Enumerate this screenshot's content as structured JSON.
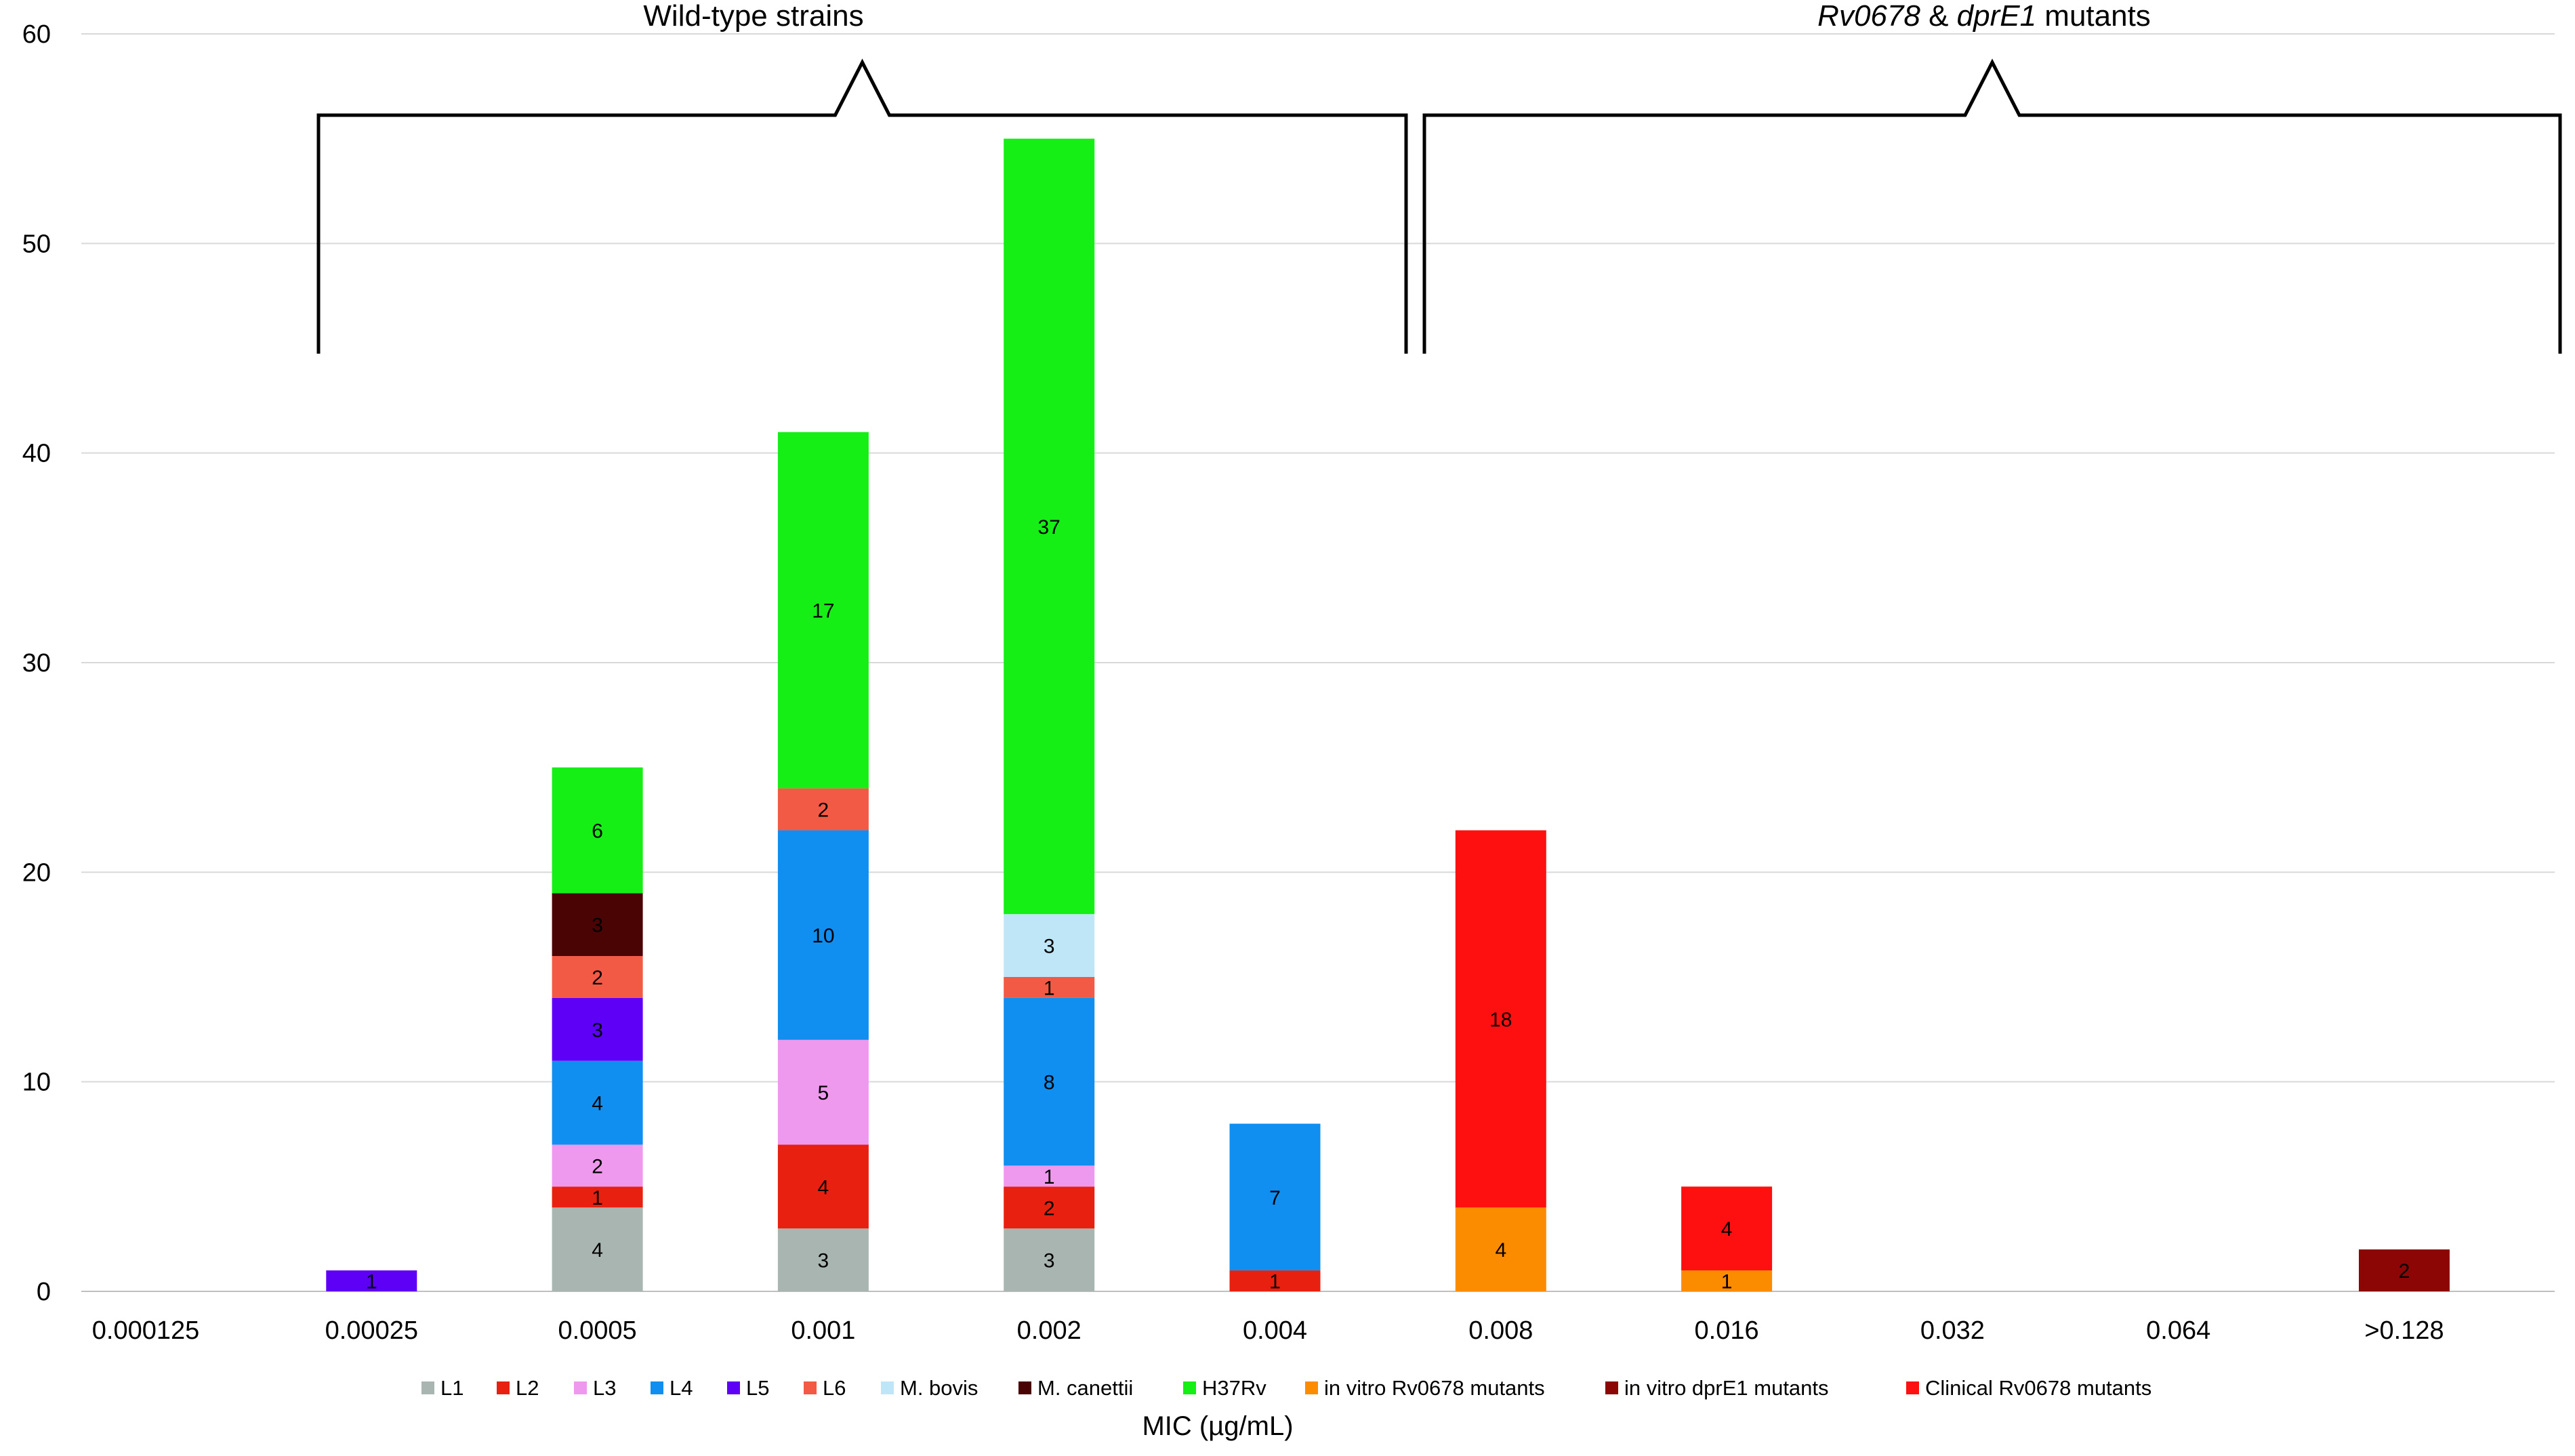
{
  "chart_data": {
    "type": "bar",
    "stacked": true,
    "title": "",
    "xlabel": "MIC (µg/mL)",
    "ylabel": "",
    "ylim": [
      0,
      60
    ],
    "yticks": [
      0,
      10,
      20,
      30,
      40,
      50,
      60
    ],
    "categories": [
      "0.000125",
      "0.00025",
      "0.0005",
      "0.001",
      "0.002",
      "0.004",
      "0.008",
      "0.016",
      "0.032",
      "0.064",
      ">0.128"
    ],
    "series": [
      {
        "name": "L1",
        "color": "#a9b5b1",
        "values": [
          0,
          0,
          4,
          3,
          3,
          0,
          0,
          0,
          0,
          0,
          0
        ]
      },
      {
        "name": "L2",
        "color": "#e8200f",
        "values": [
          0,
          0,
          1,
          4,
          2,
          1,
          0,
          0,
          0,
          0,
          0
        ]
      },
      {
        "name": "L3",
        "color": "#ee99ee",
        "values": [
          0,
          0,
          2,
          5,
          1,
          0,
          0,
          0,
          0,
          0,
          0
        ]
      },
      {
        "name": "L4",
        "color": "#108ff0",
        "values": [
          0,
          0,
          4,
          10,
          8,
          7,
          0,
          0,
          0,
          0,
          0
        ]
      },
      {
        "name": "L5",
        "color": "#5d00f5",
        "values": [
          0,
          1,
          3,
          0,
          0,
          0,
          0,
          0,
          0,
          0,
          0
        ]
      },
      {
        "name": "L6",
        "color": "#f25a45",
        "values": [
          0,
          0,
          2,
          2,
          1,
          0,
          0,
          0,
          0,
          0,
          0
        ]
      },
      {
        "name": "M. bovis",
        "color": "#bfe6f7",
        "values": [
          0,
          0,
          0,
          0,
          3,
          0,
          0,
          0,
          0,
          0,
          0
        ]
      },
      {
        "name": "M. canettii",
        "color": "#4a0404",
        "values": [
          0,
          0,
          3,
          0,
          0,
          0,
          0,
          0,
          0,
          0,
          0
        ]
      },
      {
        "name": "H37Rv",
        "color": "#15ef15",
        "values": [
          0,
          0,
          6,
          17,
          37,
          0,
          0,
          0,
          0,
          0,
          0
        ]
      },
      {
        "name": "in vitro Rv0678 mutants",
        "color": "#fb8c00",
        "values": [
          0,
          0,
          0,
          0,
          0,
          0,
          4,
          1,
          0,
          0,
          0
        ]
      },
      {
        "name": "in vitro dprE1 mutants",
        "color": "#8c0606",
        "values": [
          0,
          0,
          0,
          0,
          0,
          0,
          0,
          0,
          0,
          0,
          2
        ]
      },
      {
        "name": "Clinical Rv0678 mutants",
        "color": "#ff1010",
        "values": [
          0,
          0,
          0,
          0,
          0,
          0,
          18,
          4,
          0,
          0,
          0
        ]
      }
    ],
    "annotations": [
      {
        "type": "bracket",
        "label": "Wild-type strains",
        "from_category": "0.00025",
        "to_category": "0.004"
      },
      {
        "type": "bracket",
        "label_parts": [
          {
            "text": "Rv0678",
            "italic": true
          },
          {
            "text": " & ",
            "italic": false
          },
          {
            "text": "dprE1",
            "italic": true
          },
          {
            "text": " mutants",
            "italic": false
          }
        ],
        "from_category": "0.008",
        "to_category": ">0.128"
      }
    ],
    "grid": "horizontal",
    "legend_position": "bottom"
  }
}
